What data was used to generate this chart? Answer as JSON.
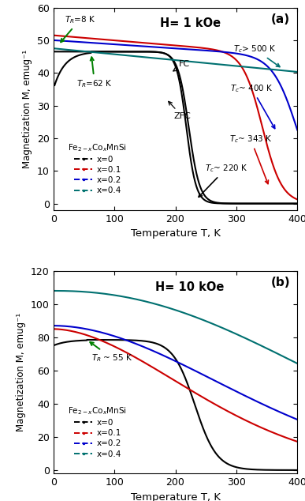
{
  "fig_width": 3.87,
  "fig_height": 6.34,
  "background_color": "#ffffff",
  "panel_a": {
    "title": "H= 1 kOe",
    "panel_label": "(a)",
    "ylabel": "Magnetization M, emug⁻¹",
    "xlabel": "Temperature T, K",
    "xlim": [
      0,
      400
    ],
    "ylim": [
      -2,
      60
    ],
    "yticks": [
      0,
      10,
      20,
      30,
      40,
      50,
      60
    ],
    "xticks": [
      0,
      100,
      200,
      300,
      400
    ]
  },
  "panel_b": {
    "title": "H= 10 kOe",
    "panel_label": "(b)",
    "ylabel": "Magnetization M, emug⁻¹",
    "xlabel": "Temperature T, K",
    "xlim": [
      0,
      400
    ],
    "ylim": [
      -2,
      120
    ],
    "yticks": [
      0,
      20,
      40,
      60,
      80,
      100,
      120
    ],
    "xticks": [
      0,
      100,
      200,
      300,
      400
    ]
  },
  "colors": {
    "x0": "#000000",
    "x01": "#cc0000",
    "x02": "#0000cc",
    "x04": "#007070"
  },
  "lw": 1.5
}
